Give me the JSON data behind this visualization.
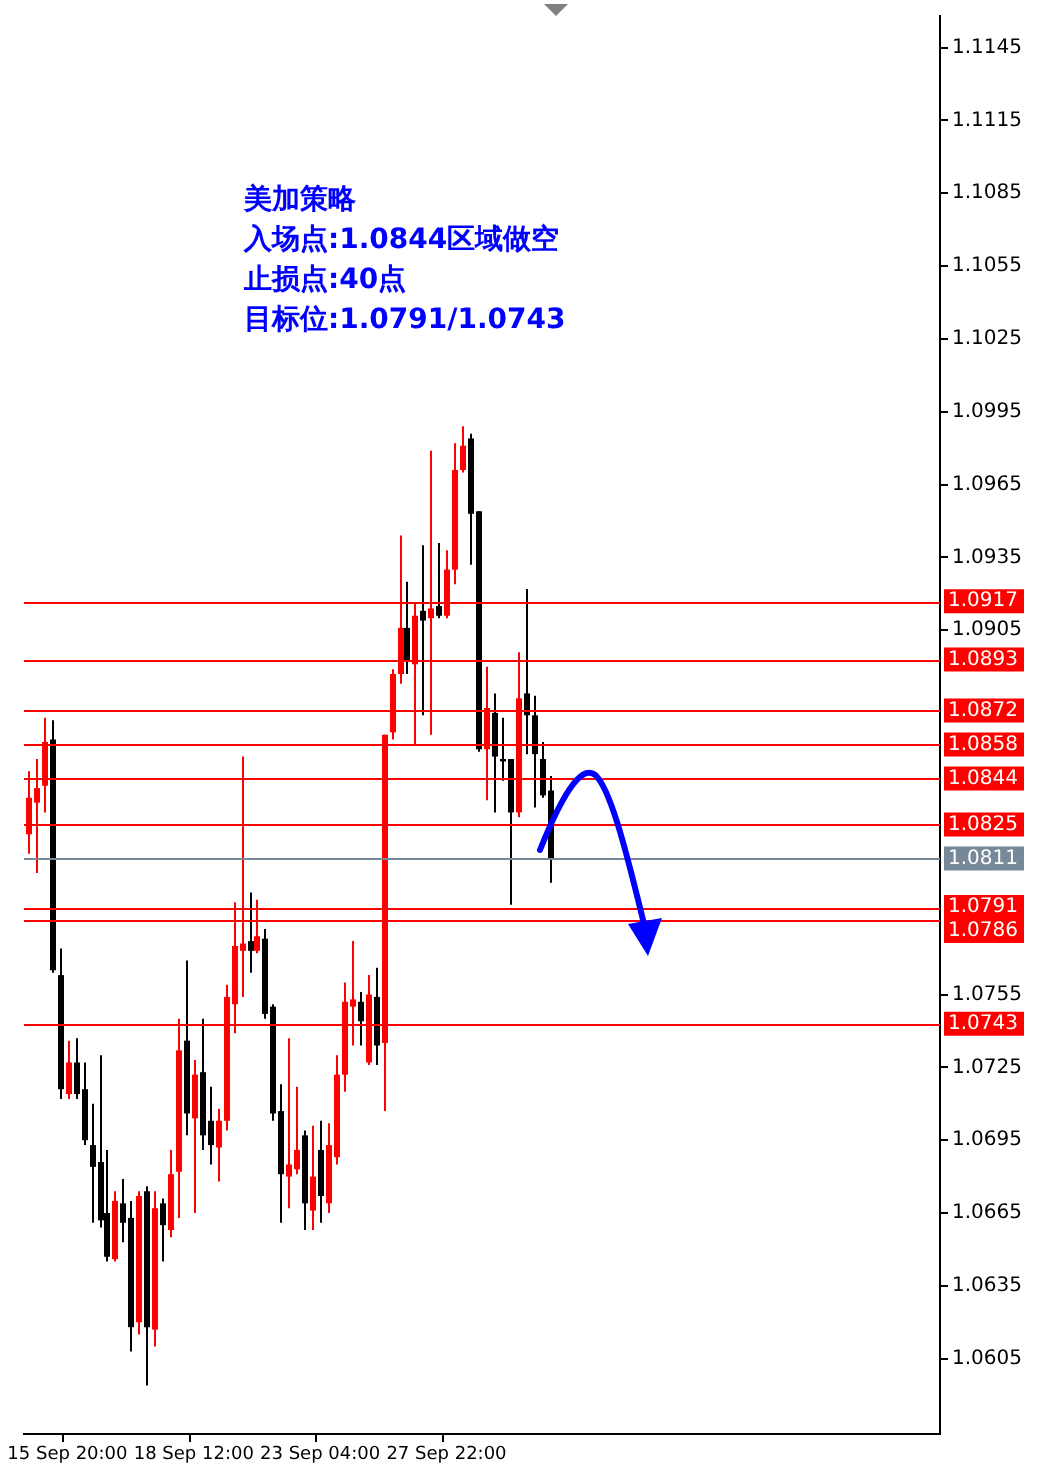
{
  "chart_data": {
    "type": "candlestick",
    "annotations": [
      "美加策略",
      "入场点:1.0844区域做空",
      "止损点:40点",
      "目标位:1.0791/1.0743"
    ],
    "categories": [
      null,
      null,
      null,
      null,
      null,
      "15 Sep 20:00",
      null,
      null,
      null,
      null,
      null,
      null,
      null,
      null,
      null,
      null,
      null,
      null,
      null,
      null,
      null,
      "18 Sep 12:00",
      null,
      null,
      null,
      null,
      null,
      null,
      null,
      null,
      null,
      null,
      null,
      null,
      null,
      null,
      null,
      "23 Sep 04:00",
      null,
      null,
      null,
      null,
      null,
      null,
      null,
      null,
      null,
      null,
      null,
      null,
      null,
      null,
      null,
      "27 Sep 22:00",
      null,
      null,
      null,
      null,
      null,
      null,
      null,
      null,
      null,
      null,
      null,
      null,
      null,
      null,
      null,
      null,
      null,
      null,
      null,
      null,
      null,
      null,
      null,
      null,
      null,
      null,
      null,
      null,
      null,
      null,
      null,
      null,
      null,
      null,
      null,
      null,
      null,
      null,
      null,
      null,
      null,
      null,
      null,
      null,
      null,
      null,
      null,
      null,
      null,
      null,
      null,
      null,
      null,
      null,
      null,
      null,
      null,
      null,
      null,
      null,
      null,
      null
    ],
    "ohlc": [
      [
        1.0821,
        1.0847,
        1.0813,
        1.0836
      ],
      [
        1.0834,
        1.0852,
        1.0805,
        1.084
      ],
      [
        1.0841,
        1.0869,
        1.083,
        1.0859
      ],
      [
        1.086,
        1.0868,
        1.0764,
        1.0765
      ],
      [
        1.0763,
        1.0774,
        1.0712,
        1.0716
      ],
      [
        1.0714,
        1.0736,
        1.0712,
        1.0727
      ],
      [
        1.0727,
        1.0737,
        1.0712,
        1.0714
      ],
      [
        1.0716,
        1.0727,
        1.0693,
        1.0695
      ],
      [
        1.0693,
        1.071,
        1.0661,
        1.0684
      ],
      [
        1.0686,
        1.073,
        1.0659,
        1.0662
      ],
      [
        1.0665,
        1.0691,
        1.0645,
        1.0647
      ],
      [
        1.0646,
        1.0674,
        1.0645,
        1.067
      ],
      [
        1.0669,
        1.0679,
        1.0653,
        1.0661
      ],
      [
        1.0663,
        1.067,
        1.0608,
        1.0618
      ],
      [
        1.062,
        1.0674,
        1.0615,
        1.0672
      ],
      [
        1.0674,
        1.0676,
        1.0594,
        1.0618
      ],
      [
        1.0617,
        1.0674,
        1.061,
        1.0667
      ],
      [
        1.0669,
        1.0671,
        1.0645,
        1.066
      ],
      [
        1.0658,
        1.0691,
        1.0655,
        1.0681
      ],
      [
        1.0682,
        1.0745,
        1.0663,
        1.0732
      ],
      [
        1.0736,
        1.0769,
        1.0697,
        1.0706
      ],
      [
        1.0704,
        1.0728,
        1.0665,
        1.0722
      ],
      [
        1.0723,
        1.0745,
        1.0691,
        1.0697
      ],
      [
        1.0703,
        1.0717,
        1.0685,
        1.0693
      ],
      [
        1.0692,
        1.0708,
        1.0678,
        1.0703
      ],
      [
        1.0703,
        1.0759,
        1.0699,
        1.0754
      ],
      [
        1.0751,
        1.0793,
        1.0739,
        1.0775
      ],
      [
        1.0773,
        1.0853,
        1.0754,
        1.0776
      ],
      [
        1.0777,
        1.0797,
        1.0764,
        1.0773
      ],
      [
        1.0773,
        1.0794,
        1.0772,
        1.0779
      ],
      [
        1.0778,
        1.0782,
        1.0745,
        1.0747
      ],
      [
        1.075,
        1.0751,
        1.0703,
        1.0706
      ],
      [
        1.0707,
        1.0718,
        1.0661,
        1.0681
      ],
      [
        1.068,
        1.0737,
        1.0667,
        1.0685
      ],
      [
        1.0683,
        1.0717,
        1.0681,
        1.0691
      ],
      [
        1.0697,
        1.0699,
        1.0658,
        1.0669
      ],
      [
        1.0666,
        1.0701,
        1.0658,
        1.068
      ],
      [
        1.0691,
        1.0703,
        1.0661,
        1.0672
      ],
      [
        1.0669,
        1.0702,
        1.0665,
        1.0693
      ],
      [
        1.0688,
        1.073,
        1.0685,
        1.0722
      ],
      [
        1.0722,
        1.076,
        1.0715,
        1.0752
      ],
      [
        1.075,
        1.0777,
        1.0734,
        1.0753
      ],
      [
        1.0752,
        1.0756,
        1.0734,
        1.0744
      ],
      [
        1.0727,
        1.0763,
        1.0726,
        1.0755
      ],
      [
        1.0754,
        1.0766,
        1.0726,
        1.0734
      ],
      [
        1.0735,
        1.0862,
        1.0707,
        1.0862
      ],
      [
        1.0863,
        1.0889,
        1.086,
        1.0887
      ],
      [
        1.0887,
        1.0944,
        1.0883,
        1.0906
      ],
      [
        1.0906,
        1.0925,
        1.0887,
        1.0892
      ],
      [
        1.0891,
        1.0916,
        1.0858,
        1.0911
      ],
      [
        1.0913,
        1.094,
        1.087,
        1.0909
      ],
      [
        1.091,
        1.0979,
        1.0862,
        1.0914
      ],
      [
        1.0915,
        1.0941,
        1.091,
        1.0911
      ],
      [
        1.0911,
        1.0938,
        1.091,
        1.093
      ],
      [
        1.093,
        1.0982,
        1.0924,
        1.0971
      ],
      [
        1.0971,
        1.0989,
        1.097,
        1.0981
      ],
      [
        1.0984,
        1.0986,
        1.0932,
        1.0953
      ],
      [
        1.0954,
        1.0954,
        1.0855,
        1.0856
      ],
      [
        1.0856,
        1.089,
        1.0835,
        1.0873
      ],
      [
        1.0871,
        1.0879,
        1.083,
        1.0853
      ],
      [
        1.0852,
        1.0869,
        1.0843,
        1.0851
      ],
      [
        1.0852,
        1.0852,
        1.0792,
        1.083
      ],
      [
        1.083,
        1.0896,
        1.0828,
        1.0877
      ],
      [
        1.0879,
        1.0922,
        1.0854,
        1.087
      ],
      [
        1.087,
        1.0878,
        1.0832,
        1.0854
      ],
      [
        1.0852,
        1.0859,
        1.0836,
        1.0837
      ],
      [
        1.0839,
        1.0845,
        1.0801,
        1.0811
      ],
      null,
      null,
      null,
      null,
      null,
      null,
      null,
      null,
      null,
      null,
      null,
      null,
      null,
      null,
      null,
      null,
      null,
      null,
      null,
      null,
      null,
      null,
      null,
      null,
      null,
      null,
      null,
      null,
      null,
      null,
      null,
      null,
      null,
      null,
      null,
      null,
      null,
      null,
      null,
      null,
      null,
      null,
      null,
      null,
      null,
      null,
      null,
      null,
      null
    ],
    "colors": [
      "#ff0000",
      "#ff0000",
      "#ff0000",
      "#000000",
      "#000000",
      "#ff0000",
      "#000000",
      "#000000",
      "#000000",
      "#000000",
      "#000000",
      "#ff0000",
      "#000000",
      "#000000",
      "#ff0000",
      "#000000",
      "#ff0000",
      "#000000",
      "#ff0000",
      "#ff0000",
      "#000000",
      "#ff0000",
      "#000000",
      "#000000",
      "#ff0000",
      "#ff0000",
      "#ff0000",
      "#ff0000",
      "#000000",
      "#ff0000",
      "#000000",
      "#000000",
      "#000000",
      "#ff0000",
      "#ff0000",
      "#000000",
      "#ff0000",
      "#000000",
      "#ff0000",
      "#ff0000",
      "#ff0000",
      "#ff0000",
      "#000000",
      "#ff0000",
      "#000000",
      "#ff0000",
      "#ff0000",
      "#ff0000",
      "#000000",
      "#ff0000",
      "#000000",
      "#ff0000",
      "#000000",
      "#ff0000",
      "#ff0000",
      "#ff0000",
      "#000000",
      "#000000",
      "#ff0000",
      "#000000",
      "#000000",
      "#000000",
      "#ff0000",
      "#000000",
      "#000000",
      "#000000",
      "#000000",
      null,
      null,
      null,
      null,
      null,
      null,
      null,
      null,
      null,
      null,
      null,
      null,
      null,
      null,
      null,
      null,
      null,
      null,
      null,
      null,
      null,
      null,
      null,
      null,
      null,
      null,
      null,
      null,
      null,
      null,
      null,
      null,
      null,
      null,
      null,
      null,
      null,
      null,
      null,
      null,
      null,
      null,
      null,
      null,
      null,
      null,
      null,
      null,
      null
    ],
    "ylim": [
      1.0574,
      1.1158
    ],
    "yticks": [
      1.0605,
      1.0635,
      1.0665,
      1.0695,
      1.0725,
      1.0755,
      1.0905,
      1.0935,
      1.0965,
      1.0995,
      1.1025,
      1.1055,
      1.1085,
      1.1115,
      1.1145
    ],
    "ref_lines": [
      {
        "axis": "y",
        "value": 1.0917,
        "label": "1.0917",
        "color": "#ff0000"
      },
      {
        "axis": "y",
        "value": 1.0893,
        "label": "1.0893",
        "color": "#ff0000"
      },
      {
        "axis": "y",
        "value": 1.0872,
        "label": "1.0872",
        "color": "#ff0000"
      },
      {
        "axis": "y",
        "value": 1.0858,
        "label": "1.0858",
        "color": "#ff0000"
      },
      {
        "axis": "y",
        "value": 1.0844,
        "label": "1.0844",
        "color": "#ff0000"
      },
      {
        "axis": "y",
        "value": 1.0825,
        "label": "1.0825",
        "color": "#ff0000"
      },
      {
        "axis": "y",
        "value": 1.0811,
        "label": "1.0811",
        "color": "#778899"
      },
      {
        "axis": "y",
        "value": 1.0791,
        "label": "1.0791",
        "color": "#ff0000"
      },
      {
        "axis": "y",
        "value": 1.0786,
        "label": "1.0786",
        "color": "#ff0000"
      },
      {
        "axis": "y",
        "value": 1.0743,
        "label": "1.0743",
        "color": "#ff0000"
      }
    ],
    "grid": false,
    "legend": false
  }
}
